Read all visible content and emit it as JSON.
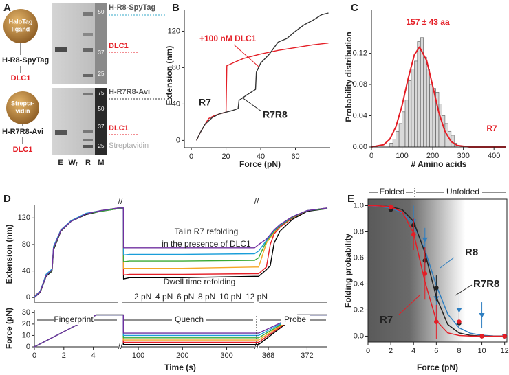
{
  "panel_a": {
    "panel": "A",
    "construct_top": {
      "bead": [
        "HaloTag",
        "ligand"
      ],
      "protein": "H-R8-SpyTag",
      "ligand": "DLC1"
    },
    "construct_bottom": {
      "bead": [
        "Strepta-",
        "vidin"
      ],
      "protein": "H-R7R8-Avi",
      "ligand": "DLC1"
    },
    "gel_top": {
      "markers": [
        "50",
        "37",
        "25"
      ],
      "bands": [
        "H-R8-SpyTag",
        "DLC1"
      ]
    },
    "gel_bottom": {
      "markers": [
        "75",
        "50",
        "37",
        "25"
      ],
      "bands": [
        "H-R7R8-Avi",
        "DLC1",
        "Streptavidin"
      ]
    },
    "lanes": [
      "E",
      "W",
      "R",
      "M"
    ],
    "lane_subscript": "f"
  },
  "chart_data": [
    {
      "type": "line",
      "panel": "B",
      "xlabel": "Force (pN)",
      "ylabel": "Extension (nm)",
      "annotations": [
        "+100 nM DLC1"
      ],
      "xlim": [
        -4,
        80
      ],
      "xticks": [
        0,
        20,
        40,
        60
      ],
      "ylim": [
        -8,
        143
      ],
      "yticks": [
        0,
        40,
        80,
        120
      ],
      "series": [
        {
          "name": "R7",
          "color": "#e41e26",
          "x": [
            3,
            5,
            8,
            10,
            13,
            16,
            18,
            20,
            20.5,
            25,
            30,
            40,
            50,
            60,
            70,
            79
          ],
          "values": [
            0,
            8,
            18,
            24,
            27,
            29,
            30,
            31,
            82,
            86,
            90,
            95,
            99,
            102,
            105,
            107
          ]
        },
        {
          "name": "R7R8",
          "color": "#333333",
          "x": [
            3,
            5,
            8,
            12,
            16,
            20,
            24,
            27,
            27.5,
            32,
            37,
            37.5,
            40,
            45,
            50,
            55,
            60,
            65,
            70,
            75,
            79
          ],
          "values": [
            0,
            8,
            18,
            25,
            29,
            31,
            33,
            35,
            44,
            50,
            56,
            75,
            85,
            95,
            108,
            112,
            120,
            127,
            132,
            138,
            140
          ]
        }
      ]
    },
    {
      "type": "histogram",
      "panel": "C",
      "xlabel": "# Amino acids",
      "ylabel": "Probability distribution",
      "annotations": [
        "157 ± 43 aa",
        "R7"
      ],
      "color": "#d9d9d9",
      "xlim": [
        0,
        440
      ],
      "xticks": [
        0,
        100,
        200,
        300,
        400
      ],
      "ylim": [
        0,
        0.175
      ],
      "yticks": [
        {
          "value": 0,
          "label": "0.00"
        },
        0.04,
        0.08,
        0.12
      ],
      "bins": [
        60,
        70,
        80,
        90,
        100,
        110,
        120,
        130,
        140,
        150,
        160,
        170,
        180,
        190,
        200,
        210,
        220,
        230,
        240,
        250,
        260,
        270,
        280
      ],
      "values": [
        0.005,
        0.01,
        0.02,
        0.03,
        0.045,
        0.06,
        0.085,
        0.1,
        0.11,
        0.135,
        0.14,
        0.115,
        0.1,
        0.08,
        0.075,
        0.07,
        0.055,
        0.04,
        0.03,
        0.02,
        0.015,
        0.005
      ],
      "fit": {
        "color": "#e41e26",
        "x": [
          0,
          40,
          60,
          80,
          100,
          120,
          140,
          157,
          180,
          200,
          220,
          240,
          260,
          280,
          320,
          440
        ],
        "values": [
          0,
          0.003,
          0.01,
          0.026,
          0.053,
          0.088,
          0.118,
          0.128,
          0.111,
          0.078,
          0.044,
          0.02,
          0.007,
          0.002,
          0,
          0
        ]
      }
    },
    {
      "type": "line",
      "panel": "D",
      "xlabel": "Time (s)",
      "annotations": [
        "Talin R7 refolding",
        "in the presence of DLC1",
        "Dwell time refolding",
        "Fingerprint",
        "Quench",
        "Probe"
      ],
      "xsegments": [
        {
          "xlim": [
            0,
            5.7
          ],
          "xticks": [
            0,
            2,
            4
          ]
        },
        {
          "xlim": [
            64,
            363
          ],
          "xticks": [
            100,
            200,
            300
          ]
        },
        {
          "xlim": [
            367,
            374.1
          ],
          "xticks": [
            368,
            372
          ]
        }
      ],
      "subplots": [
        {
          "ylabel": "Extension (nm)",
          "ylim": [
            -7,
            140
          ],
          "yticks": [
            0,
            40,
            80,
            120
          ],
          "x": [
            0,
            0.4,
            0.8,
            1.2,
            1.3,
            1.8,
            2.5,
            3.5,
            4.5,
            5.7,
            64,
            66,
            66.5,
            80,
            200,
            363,
            367,
            367.8,
            368.2,
            368.6,
            369.2,
            370.5,
            372,
            374.1
          ],
          "series": [
            {
              "name": "2 pN",
              "color": "#000000",
              "values": [
                0,
                8,
                32,
                40,
                72,
                100,
                115,
                125,
                130,
                134,
                134,
                134,
                28,
                30,
                30,
                32,
                32,
                42,
                48,
                82,
                100,
                118,
                130,
                134
              ]
            },
            {
              "name": "4 pN",
              "color": "#e41e26",
              "values": [
                2,
                10,
                35,
                42,
                76,
                102,
                116,
                126,
                131,
                135,
                135,
                135,
                34,
                35,
                35,
                36,
                36,
                46,
                80,
                96,
                106,
                120,
                131,
                135
              ]
            },
            {
              "name": "6 pN",
              "color": "#f5a623",
              "values": [
                1,
                9,
                34,
                41,
                75,
                101,
                116,
                126,
                131,
                135,
                135,
                135,
                44,
                44,
                44,
                46,
                46,
                82,
                90,
                98,
                108,
                121,
                131,
                135
              ]
            },
            {
              "name": "8 pN",
              "color": "#3aaa35",
              "values": [
                0,
                9,
                33,
                41,
                74,
                101,
                115,
                126,
                130,
                134,
                134,
                134,
                54,
                55,
                55,
                56,
                60,
                85,
                92,
                100,
                108,
                121,
                131,
                134
              ]
            },
            {
              "name": "10 pN",
              "color": "#1a9ed9",
              "values": [
                1,
                10,
                35,
                43,
                77,
                102,
                116,
                127,
                131,
                135,
                135,
                135,
                64,
                65,
                65,
                66,
                70,
                86,
                94,
                101,
                109,
                122,
                131,
                135
              ]
            },
            {
              "name": "12 pN",
              "color": "#7030a0",
              "values": [
                0,
                9,
                33,
                42,
                75,
                101,
                115,
                126,
                131,
                135,
                135,
                135,
                75,
                75,
                75,
                75,
                80,
                88,
                95,
                102,
                110,
                122,
                131,
                135
              ]
            }
          ]
        },
        {
          "ylabel": "Force (pN)",
          "ylim": [
            0,
            32
          ],
          "yticks": [
            0,
            10,
            20,
            30
          ],
          "x": [
            0,
            4.2,
            5.7,
            64,
            66,
            66.1,
            363,
            367,
            371,
            374.1
          ],
          "series": [
            {
              "color": "#000000",
              "values": [
                0,
                28,
                28,
                28,
                28,
                2,
                2,
                2,
                28,
                28
              ]
            },
            {
              "color": "#e41e26",
              "values": [
                0,
                28,
                28,
                28,
                28,
                4,
                4,
                4,
                28,
                28
              ]
            },
            {
              "color": "#f5a623",
              "values": [
                0,
                28,
                28,
                28,
                28,
                6,
                6,
                6,
                28,
                28
              ]
            },
            {
              "color": "#3aaa35",
              "values": [
                0,
                28,
                28,
                28,
                28,
                8,
                8,
                8,
                28,
                28
              ]
            },
            {
              "color": "#1a9ed9",
              "values": [
                0,
                28,
                28,
                28,
                28,
                10,
                10,
                10,
                28,
                28
              ]
            },
            {
              "color": "#7030a0",
              "values": [
                0,
                28,
                28,
                28,
                28,
                12,
                12,
                12,
                28,
                28
              ]
            }
          ]
        }
      ]
    },
    {
      "type": "scatter",
      "panel": "E",
      "xlabel": "Force (pN)",
      "ylabel": "Folding probability",
      "annotations": [
        "Folded",
        "Unfolded"
      ],
      "xlim": [
        0,
        12.2
      ],
      "xticks": [
        0,
        2,
        4,
        6,
        8,
        10,
        12
      ],
      "ylim": [
        -0.045,
        1.05
      ],
      "yticks": [
        {
          "value": 0,
          "label": "0.0"
        },
        0.2,
        0.4,
        0.6,
        0.8,
        {
          "value": 1,
          "label": "1.0"
        }
      ],
      "x": [
        2,
        4,
        5,
        6,
        8,
        10,
        12
      ],
      "fit_x": [
        0,
        1,
        2,
        3,
        4,
        5,
        6,
        7,
        8,
        9,
        10,
        11,
        12
      ],
      "series": [
        {
          "name": "R8",
          "color": "#2f7fc1",
          "marker": "triangle",
          "values": [
            0.97,
            0.88,
            0.74,
            0.29,
            0.2,
            0.16,
            0
          ],
          "errors": [
            0.02,
            0.12,
            0.09,
            0.17,
            0.13,
            0.1,
            0
          ],
          "fit_values": [
            0.998,
            0.994,
            0.983,
            0.946,
            0.855,
            0.661,
            0.389,
            0.17,
            0.064,
            0.022,
            0.007,
            0.002,
            0.001
          ]
        },
        {
          "name": "R7R8",
          "color": "#222222",
          "marker": "circle",
          "values": [
            0.97,
            0.85,
            0.58,
            0.37,
            0.1,
            0,
            0
          ],
          "errors": [
            0.02,
            0.05,
            0.1,
            0.1,
            0.08,
            0,
            0
          ],
          "fit_values": [
            1,
            0.998,
            0.992,
            0.97,
            0.88,
            0.64,
            0.3,
            0.09,
            0.024,
            0.006,
            0.001,
            0,
            0
          ]
        },
        {
          "name": "R7",
          "color": "#e41e26",
          "marker": "circle",
          "values": [
            0.99,
            0.78,
            0.48,
            0.11,
            0.11,
            0,
            0
          ],
          "errors": [
            0.02,
            0.12,
            0.2,
            0.13,
            0.08,
            0,
            0
          ],
          "fit_values": [
            1,
            0.998,
            0.991,
            0.953,
            0.791,
            0.417,
            0.119,
            0.025,
            0.005,
            0.001,
            0,
            0,
            0
          ]
        }
      ]
    }
  ]
}
